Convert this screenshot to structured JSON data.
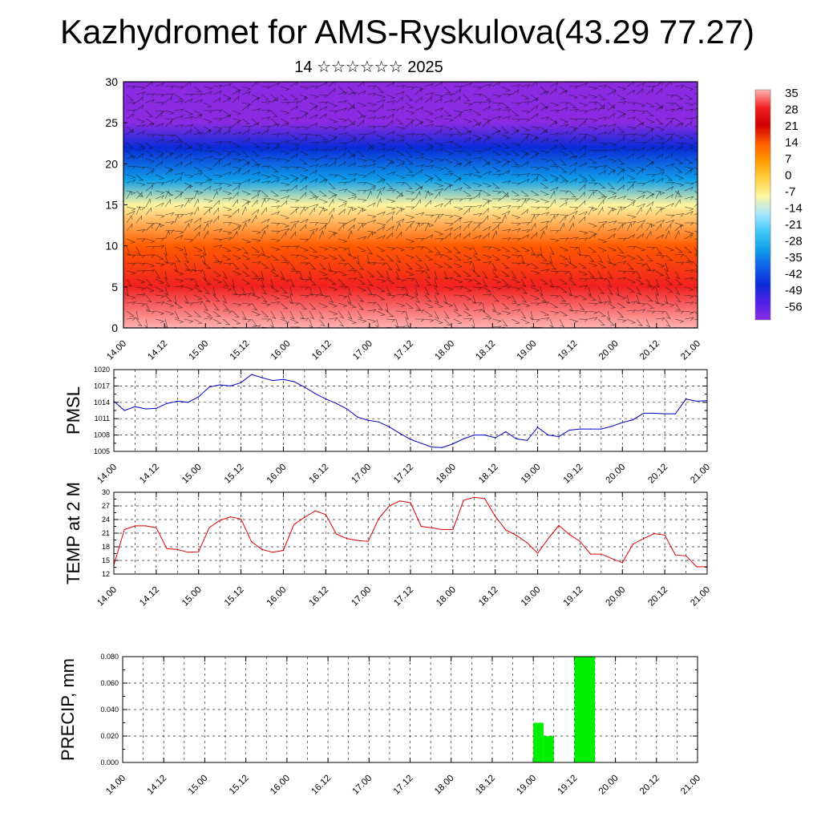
{
  "title": "Kazhydromet for AMS-Ryskulova(43.29 77.27)",
  "subtitle": "14 ☆☆☆☆☆☆ 2025",
  "chart_data": [
    {
      "type": "heatmap",
      "name": "vertical cross-section",
      "ylim": [
        0,
        30
      ],
      "yticks": [
        "0",
        "5",
        "10",
        "15",
        "20",
        "25",
        "30"
      ],
      "xticks": [
        "14.00",
        "14.12",
        "15.00",
        "15.12",
        "16.00",
        "16.12",
        "17.00",
        "17.12",
        "18.00",
        "18.12",
        "19.00",
        "19.12",
        "20.00",
        "20.12",
        "21.00"
      ],
      "colorbar": {
        "labels": [
          "35",
          "28",
          "21",
          "14",
          "7",
          "0",
          "-7",
          "-14",
          "-21",
          "-28",
          "-35",
          "-42",
          "-49",
          "-56"
        ],
        "values": [
          35,
          28,
          21,
          14,
          7,
          0,
          -7,
          -14,
          -21,
          -28,
          -35,
          -42,
          -49,
          -56
        ],
        "colors": [
          "#ffb3b3",
          "#f02020",
          "#d00000",
          "#ff5a00",
          "#ff9a00",
          "#ffd040",
          "#fff5a0",
          "#a8e8ff",
          "#40c8f8",
          "#10a0e8",
          "#1060e8",
          "#0a2ad8",
          "#5020e8",
          "#8a2be2"
        ]
      },
      "temperature_profile_by_level": [
        {
          "level": 0,
          "value": 30
        },
        {
          "level": 5,
          "value": 22
        },
        {
          "level": 10,
          "value": 8
        },
        {
          "level": 15,
          "value": -8
        },
        {
          "level": 18,
          "value": -30
        },
        {
          "level": 22,
          "value": -48
        },
        {
          "level": 25,
          "value": -56
        },
        {
          "level": 30,
          "value": -56
        }
      ]
    },
    {
      "type": "line",
      "ylabel": "PMSL",
      "ylim": [
        1005,
        1020
      ],
      "yticks": [
        "1005",
        "1008",
        "1011",
        "1014",
        "1017",
        "1020"
      ],
      "xticks": [
        "14.00",
        "14.12",
        "15.00",
        "15.12",
        "16.00",
        "16.12",
        "17.00",
        "17.12",
        "18.00",
        "18.12",
        "19.00",
        "19.12",
        "20.00",
        "20.12",
        "21.00"
      ],
      "color": "#0000cc",
      "x": [
        0,
        3,
        6,
        9,
        12,
        15,
        18,
        21,
        24,
        27,
        30,
        33,
        36,
        39,
        42,
        45,
        48,
        51,
        54,
        57,
        60,
        63,
        66,
        69,
        72,
        75,
        78,
        81,
        84,
        87,
        90,
        93,
        96,
        99,
        102,
        105,
        108,
        111,
        114,
        117,
        120,
        123,
        126,
        129,
        132,
        135,
        138,
        141,
        144,
        147,
        150,
        153,
        156,
        159,
        162,
        165,
        168
      ],
      "values": [
        1014.2,
        1012.5,
        1013.2,
        1012.8,
        1012.9,
        1013.8,
        1014.2,
        1014.0,
        1015.0,
        1016.8,
        1017.2,
        1017.0,
        1017.6,
        1019.1,
        1018.5,
        1018.0,
        1018.2,
        1017.8,
        1016.8,
        1015.6,
        1014.6,
        1013.8,
        1012.8,
        1011.3,
        1010.7,
        1010.4,
        1009.5,
        1008.3,
        1007.2,
        1006.5,
        1005.8,
        1005.7,
        1006.4,
        1007.3,
        1008.0,
        1008.0,
        1007.5,
        1008.6,
        1007.3,
        1007.0,
        1009.4,
        1008.0,
        1007.7,
        1008.9,
        1009.1,
        1009.1,
        1009.1,
        1009.6,
        1010.3,
        1010.8,
        1012.0,
        1012.0,
        1011.9,
        1011.9,
        1014.6,
        1014.2,
        1014.3
      ]
    },
    {
      "type": "line",
      "ylabel": "TEMP at 2 M",
      "ylim": [
        12,
        30
      ],
      "yticks": [
        "12",
        "15",
        "18",
        "21",
        "24",
        "27",
        "30"
      ],
      "xticks": [
        "14.00",
        "14.12",
        "15.00",
        "15.12",
        "16.00",
        "16.12",
        "17.00",
        "17.12",
        "18.00",
        "18.12",
        "19.00",
        "19.12",
        "20.00",
        "20.12",
        "21.00"
      ],
      "color": "#dd0000",
      "x": [
        0,
        3,
        6,
        9,
        12,
        15,
        18,
        21,
        24,
        27,
        30,
        33,
        36,
        39,
        42,
        45,
        48,
        51,
        54,
        57,
        60,
        63,
        66,
        69,
        72,
        75,
        78,
        81,
        84,
        87,
        90,
        93,
        96,
        99,
        102,
        105,
        108,
        111,
        114,
        117,
        120,
        123,
        126,
        129,
        132,
        135,
        138,
        141,
        144,
        147,
        150,
        153,
        156,
        159,
        162,
        165,
        168
      ],
      "values": [
        14.0,
        21.8,
        22.6,
        22.6,
        22.2,
        17.6,
        17.4,
        16.8,
        16.9,
        22.2,
        23.8,
        24.6,
        24.1,
        19.1,
        17.4,
        16.8,
        17.2,
        22.9,
        24.5,
        25.9,
        25.1,
        20.8,
        19.8,
        19.4,
        19.2,
        24.2,
        27.0,
        28.1,
        27.7,
        22.5,
        22.2,
        21.8,
        21.8,
        28.2,
        28.9,
        28.6,
        24.7,
        21.7,
        20.5,
        18.9,
        16.6,
        19.8,
        22.7,
        20.7,
        19.2,
        16.4,
        16.4,
        15.4,
        14.5,
        18.6,
        19.8,
        20.9,
        20.6,
        16.2,
        16.0,
        13.6,
        13.6
      ]
    },
    {
      "type": "bar",
      "ylabel": "PRECIP, mm",
      "ylim": [
        0,
        0.08
      ],
      "yticks": [
        "0.000",
        "0.020",
        "0.040",
        "0.060",
        "0.080"
      ],
      "xticks": [
        "14.00",
        "14.12",
        "15.00",
        "15.12",
        "16.00",
        "16.12",
        "17.00",
        "17.12",
        "18.00",
        "18.12",
        "19.00",
        "19.12",
        "20.00",
        "20.12",
        "21.00"
      ],
      "color": "#00ee00",
      "bars": [
        {
          "x_from": 120,
          "x_to": 123,
          "value": 0.03
        },
        {
          "x_from": 123,
          "x_to": 126,
          "value": 0.02
        },
        {
          "x_from": 132,
          "x_to": 138,
          "value": 0.08
        }
      ]
    }
  ]
}
